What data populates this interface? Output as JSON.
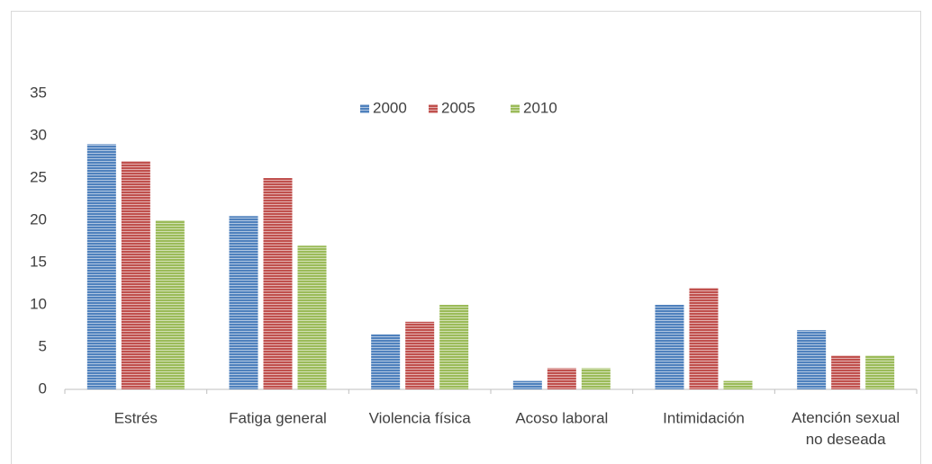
{
  "chart_data": {
    "type": "bar",
    "categories": [
      "Estrés",
      "Fatiga general",
      "Violencia física",
      "Acoso laboral",
      "Intimidación",
      "Atención sexual no deseada"
    ],
    "series": [
      {
        "name": "2000",
        "color": "#4f81bd",
        "values": [
          29,
          20.5,
          6.5,
          1,
          10,
          7
        ]
      },
      {
        "name": "2005",
        "color": "#c0504d",
        "values": [
          27,
          25,
          8,
          2.5,
          12,
          4
        ]
      },
      {
        "name": "2010",
        "color": "#9bbb59",
        "values": [
          20,
          17,
          10,
          2.5,
          1,
          4
        ]
      }
    ],
    "ylim": [
      0,
      35
    ],
    "yticks": [
      0,
      5,
      10,
      15,
      20,
      25,
      30,
      35
    ],
    "grid": false,
    "legend": "top"
  }
}
